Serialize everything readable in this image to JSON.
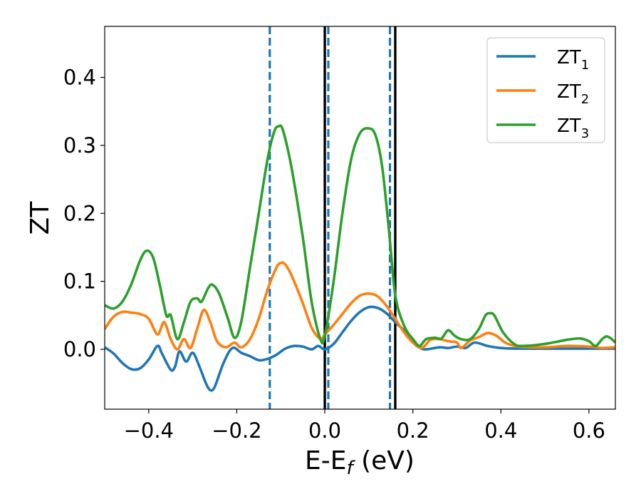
{
  "chart_data": {
    "type": "line",
    "title": "",
    "xlabel": "E-E",
    "xlabel_sub": "f",
    "xlabel_unit": " (eV)",
    "ylabel": "ZT",
    "xlim": [
      -0.5,
      0.66
    ],
    "ylim": [
      -0.088,
      0.475
    ],
    "x_ticks": [
      -0.4,
      -0.2,
      0.0,
      0.2,
      0.4,
      0.6
    ],
    "x_tick_labels": [
      "−0.4",
      "−0.2",
      "0.0",
      "0.2",
      "0.4",
      "0.6"
    ],
    "y_ticks": [
      0.0,
      0.1,
      0.2,
      0.3,
      0.4
    ],
    "y_tick_labels": [
      "0.0",
      "0.1",
      "0.2",
      "0.3",
      "0.4"
    ],
    "grid": false,
    "legend": {
      "placement": "top-right"
    },
    "vertical_lines": [
      {
        "x": -0.125,
        "style": "dashed",
        "color": "#1f77b4"
      },
      {
        "x": 0.008,
        "style": "dashed",
        "color": "#1f77b4"
      },
      {
        "x": 0.148,
        "style": "dashed",
        "color": "#1f77b4"
      },
      {
        "x": 0.0,
        "style": "solid",
        "color": "#000000"
      },
      {
        "x": 0.16,
        "style": "solid",
        "color": "#000000"
      }
    ],
    "series": [
      {
        "name": "ZT",
        "sub": "1",
        "color": "#1f77b4",
        "points": [
          [
            -0.5,
            0.003
          ],
          [
            -0.48,
            -0.006
          ],
          [
            -0.46,
            -0.02
          ],
          [
            -0.44,
            -0.029
          ],
          [
            -0.42,
            -0.028
          ],
          [
            -0.4,
            -0.015
          ],
          [
            -0.38,
            0.005
          ],
          [
            -0.37,
            -0.006
          ],
          [
            -0.35,
            -0.03
          ],
          [
            -0.34,
            -0.025
          ],
          [
            -0.33,
            -0.003
          ],
          [
            -0.315,
            -0.018
          ],
          [
            -0.3,
            -0.005
          ],
          [
            -0.285,
            -0.025
          ],
          [
            -0.27,
            -0.05
          ],
          [
            -0.26,
            -0.06
          ],
          [
            -0.25,
            -0.055
          ],
          [
            -0.23,
            -0.02
          ],
          [
            -0.21,
            0.002
          ],
          [
            -0.19,
            -0.005
          ],
          [
            -0.17,
            -0.01
          ],
          [
            -0.15,
            -0.016
          ],
          [
            -0.13,
            -0.014
          ],
          [
            -0.11,
            -0.008
          ],
          [
            -0.09,
            0.001
          ],
          [
            -0.07,
            0.005
          ],
          [
            -0.05,
            0.004
          ],
          [
            -0.03,
            0.0
          ],
          [
            -0.015,
            0.005
          ],
          [
            0.0,
            0.0
          ],
          [
            0.02,
            0.008
          ],
          [
            0.04,
            0.025
          ],
          [
            0.06,
            0.042
          ],
          [
            0.08,
            0.055
          ],
          [
            0.1,
            0.062
          ],
          [
            0.12,
            0.061
          ],
          [
            0.14,
            0.053
          ],
          [
            0.16,
            0.04
          ],
          [
            0.18,
            0.028
          ],
          [
            0.2,
            0.015
          ],
          [
            0.215,
            0.003
          ],
          [
            0.23,
            0.0
          ],
          [
            0.26,
            0.003
          ],
          [
            0.28,
            0.002
          ],
          [
            0.3,
            0.004
          ],
          [
            0.32,
            0.002
          ],
          [
            0.34,
            0.01
          ],
          [
            0.37,
            0.005
          ],
          [
            0.4,
            0.002
          ],
          [
            0.45,
            0.001
          ],
          [
            0.55,
            0.001
          ],
          [
            0.66,
            0.001
          ]
        ]
      },
      {
        "name": "ZT",
        "sub": "2",
        "color": "#ff7f0e",
        "points": [
          [
            -0.5,
            0.03
          ],
          [
            -0.48,
            0.048
          ],
          [
            -0.46,
            0.055
          ],
          [
            -0.44,
            0.054
          ],
          [
            -0.42,
            0.052
          ],
          [
            -0.4,
            0.045
          ],
          [
            -0.38,
            0.022
          ],
          [
            -0.365,
            0.04
          ],
          [
            -0.35,
            0.015
          ],
          [
            -0.335,
            0.0
          ],
          [
            -0.32,
            0.015
          ],
          [
            -0.305,
            0.002
          ],
          [
            -0.29,
            0.03
          ],
          [
            -0.275,
            0.058
          ],
          [
            -0.26,
            0.04
          ],
          [
            -0.245,
            0.012
          ],
          [
            -0.225,
            0.003
          ],
          [
            -0.205,
            0.01
          ],
          [
            -0.19,
            0.003
          ],
          [
            -0.17,
            0.015
          ],
          [
            -0.15,
            0.045
          ],
          [
            -0.13,
            0.088
          ],
          [
            -0.11,
            0.12
          ],
          [
            -0.1,
            0.127
          ],
          [
            -0.09,
            0.125
          ],
          [
            -0.075,
            0.108
          ],
          [
            -0.05,
            0.068
          ],
          [
            -0.03,
            0.032
          ],
          [
            -0.01,
            0.015
          ],
          [
            0.0,
            0.022
          ],
          [
            0.02,
            0.036
          ],
          [
            0.04,
            0.052
          ],
          [
            0.06,
            0.068
          ],
          [
            0.08,
            0.079
          ],
          [
            0.1,
            0.082
          ],
          [
            0.12,
            0.078
          ],
          [
            0.14,
            0.064
          ],
          [
            0.16,
            0.045
          ],
          [
            0.18,
            0.025
          ],
          [
            0.2,
            0.01
          ],
          [
            0.22,
            0.002
          ],
          [
            0.24,
            0.014
          ],
          [
            0.26,
            0.015
          ],
          [
            0.28,
            0.012
          ],
          [
            0.3,
            0.01
          ],
          [
            0.31,
            0.002
          ],
          [
            0.33,
            0.013
          ],
          [
            0.35,
            0.018
          ],
          [
            0.37,
            0.024
          ],
          [
            0.39,
            0.02
          ],
          [
            0.41,
            0.01
          ],
          [
            0.44,
            0.004
          ],
          [
            0.5,
            0.003
          ],
          [
            0.55,
            0.005
          ],
          [
            0.6,
            0.004
          ],
          [
            0.63,
            0.002
          ],
          [
            0.66,
            0.003
          ]
        ]
      },
      {
        "name": "ZT",
        "sub": "3",
        "color": "#2ca02c",
        "points": [
          [
            -0.5,
            0.065
          ],
          [
            -0.48,
            0.06
          ],
          [
            -0.46,
            0.07
          ],
          [
            -0.44,
            0.095
          ],
          [
            -0.42,
            0.13
          ],
          [
            -0.405,
            0.145
          ],
          [
            -0.39,
            0.135
          ],
          [
            -0.375,
            0.095
          ],
          [
            -0.36,
            0.05
          ],
          [
            -0.35,
            0.05
          ],
          [
            -0.335,
            0.015
          ],
          [
            -0.32,
            0.04
          ],
          [
            -0.305,
            0.07
          ],
          [
            -0.29,
            0.075
          ],
          [
            -0.28,
            0.07
          ],
          [
            -0.265,
            0.09
          ],
          [
            -0.255,
            0.095
          ],
          [
            -0.24,
            0.082
          ],
          [
            -0.22,
            0.045
          ],
          [
            -0.205,
            0.017
          ],
          [
            -0.19,
            0.04
          ],
          [
            -0.17,
            0.12
          ],
          [
            -0.15,
            0.2
          ],
          [
            -0.13,
            0.28
          ],
          [
            -0.115,
            0.32
          ],
          [
            -0.105,
            0.328
          ],
          [
            -0.095,
            0.322
          ],
          [
            -0.075,
            0.265
          ],
          [
            -0.05,
            0.165
          ],
          [
            -0.03,
            0.07
          ],
          [
            -0.01,
            0.015
          ],
          [
            0.0,
            0.02
          ],
          [
            0.02,
            0.1
          ],
          [
            0.04,
            0.2
          ],
          [
            0.06,
            0.28
          ],
          [
            0.08,
            0.318
          ],
          [
            0.1,
            0.325
          ],
          [
            0.115,
            0.315
          ],
          [
            0.13,
            0.27
          ],
          [
            0.145,
            0.18
          ],
          [
            0.16,
            0.08
          ],
          [
            0.18,
            0.035
          ],
          [
            0.2,
            0.015
          ],
          [
            0.215,
            0.005
          ],
          [
            0.23,
            0.015
          ],
          [
            0.25,
            0.017
          ],
          [
            0.265,
            0.016
          ],
          [
            0.28,
            0.028
          ],
          [
            0.295,
            0.02
          ],
          [
            0.31,
            0.015
          ],
          [
            0.33,
            0.015
          ],
          [
            0.35,
            0.03
          ],
          [
            0.365,
            0.05
          ],
          [
            0.375,
            0.053
          ],
          [
            0.385,
            0.05
          ],
          [
            0.405,
            0.025
          ],
          [
            0.43,
            0.008
          ],
          [
            0.45,
            0.005
          ],
          [
            0.5,
            0.008
          ],
          [
            0.55,
            0.014
          ],
          [
            0.58,
            0.016
          ],
          [
            0.6,
            0.012
          ],
          [
            0.615,
            0.005
          ],
          [
            0.63,
            0.015
          ],
          [
            0.64,
            0.019
          ],
          [
            0.65,
            0.016
          ],
          [
            0.66,
            0.01
          ]
        ]
      }
    ]
  }
}
